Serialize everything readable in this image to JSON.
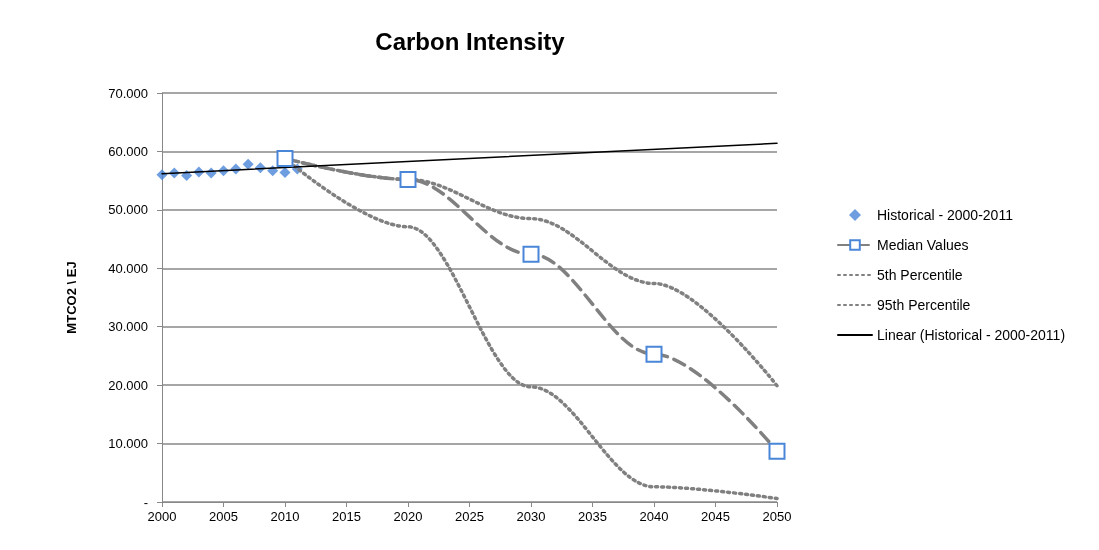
{
  "chart_data": {
    "type": "line",
    "title": "Carbon Intensity",
    "ylabel": "MTCO2 \\ EJ",
    "xlim": [
      2000,
      2050
    ],
    "xticks": [
      2000,
      2005,
      2010,
      2015,
      2020,
      2025,
      2030,
      2035,
      2040,
      2045,
      2050
    ],
    "ylim": [
      0,
      70
    ],
    "yticks": [
      {
        "value": 0,
        "label": "-"
      },
      {
        "value": 10,
        "label": "10.000"
      },
      {
        "value": 20,
        "label": "20.000"
      },
      {
        "value": 30,
        "label": "30.000"
      },
      {
        "value": 40,
        "label": "40.000"
      },
      {
        "value": 50,
        "label": "50.000"
      },
      {
        "value": 60,
        "label": "60.000"
      },
      {
        "value": 70,
        "label": "70.000"
      }
    ],
    "grid": "y",
    "legend": "right",
    "series": [
      {
        "name": "Historical - 2000-2011",
        "type": "scatter",
        "marker": "diamond",
        "color": "#4a86d8",
        "x": [
          2000,
          2001,
          2002,
          2003,
          2004,
          2005,
          2006,
          2007,
          2008,
          2009,
          2010,
          2011
        ],
        "values": [
          56.0,
          56.3,
          55.9,
          56.5,
          56.3,
          56.7,
          57.0,
          57.8,
          57.2,
          56.7,
          56.4,
          57.0
        ]
      },
      {
        "name": "Median Values",
        "marker": "square",
        "line_style": "dashed",
        "color": "#808080",
        "x": [
          2010,
          2020,
          2030,
          2040,
          2050
        ],
        "values": [
          58.8,
          55.2,
          42.4,
          25.3,
          8.7
        ]
      },
      {
        "name": "5th Percentile",
        "marker": "none",
        "line_style": "dotted",
        "color": "#808080",
        "x": [
          2010,
          2020,
          2030,
          2040,
          2050
        ],
        "values": [
          58.8,
          47.1,
          19.7,
          2.6,
          0.6
        ]
      },
      {
        "name": "95th Percentile",
        "marker": "none",
        "line_style": "dotted",
        "color": "#808080",
        "x": [
          2010,
          2020,
          2030,
          2040,
          2050
        ],
        "values": [
          58.8,
          55.2,
          48.5,
          37.4,
          19.9
        ]
      },
      {
        "name": "Linear (Historical - 2000-2011)",
        "marker": "none",
        "line_style": "solid",
        "color": "#000000",
        "x": [
          2000,
          2050
        ],
        "values": [
          56.2,
          61.4
        ]
      }
    ]
  }
}
